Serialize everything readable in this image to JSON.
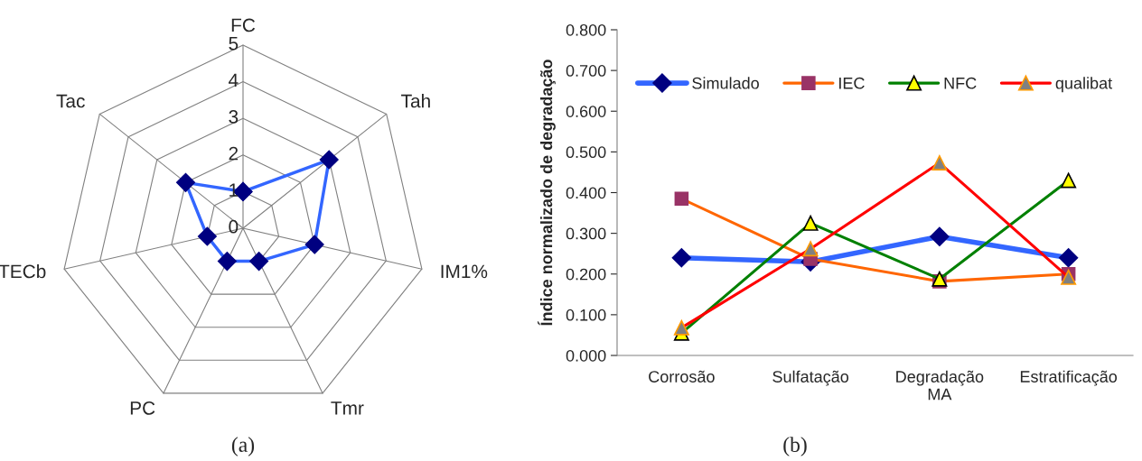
{
  "chart_data": [
    {
      "type": "radar",
      "categories": [
        "FC",
        "Tah",
        "IM1%",
        "Tmr",
        "PC",
        "TECb",
        "Tac"
      ],
      "ylim": [
        0,
        5
      ],
      "yticks": [
        0,
        1,
        2,
        3,
        4,
        5
      ],
      "marker": "diamond",
      "grid": true,
      "series": [
        {
          "color": "#3366ff",
          "values": [
            1,
            3,
            2,
            1,
            1,
            1,
            2
          ]
        }
      ],
      "annotations": [
        "(a)"
      ]
    },
    {
      "type": "line",
      "ylabel": "Índice normalizado de degradação",
      "categories": [
        "Corrosão",
        "Sulfatação",
        "Degradação\nMA",
        "Estratificação"
      ],
      "ylim": [
        0,
        0.8
      ],
      "yticks": [
        {
          "value": 0,
          "label": "0.000"
        },
        {
          "value": 0.1,
          "label": "0.100"
        },
        {
          "value": 0.2,
          "label": "0.200"
        },
        {
          "value": 0.3,
          "label": "0.300"
        },
        {
          "value": 0.4,
          "label": "0.400"
        },
        {
          "value": 0.5,
          "label": "0.500"
        },
        {
          "value": 0.6,
          "label": "0.600"
        },
        {
          "value": 0.7,
          "label": "0.700"
        },
        {
          "value": 0.8,
          "label": "0.800"
        }
      ],
      "legend": "top",
      "grid": false,
      "series": [
        {
          "name": "Simulado",
          "color": "#3366ff",
          "marker": "diamond",
          "values": [
            0.24,
            0.23,
            0.292,
            0.24
          ]
        },
        {
          "name": "IEC",
          "color": "#ff6600",
          "marker": "square",
          "values": [
            0.385,
            0.237,
            0.182,
            0.2
          ]
        },
        {
          "name": "NFC",
          "color": "#008000",
          "marker": "triangle",
          "values": [
            0.055,
            0.325,
            0.188,
            0.43
          ]
        },
        {
          "name": "qualibat",
          "color": "#ff0000",
          "marker": "triangle",
          "values": [
            0.068,
            0.262,
            0.473,
            0.192
          ]
        }
      ],
      "annotations": [
        "(b)"
      ]
    }
  ]
}
